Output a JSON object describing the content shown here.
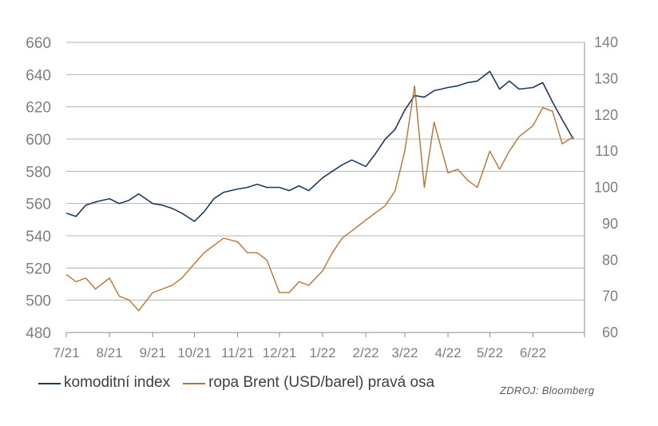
{
  "chart_data": {
    "type": "line",
    "title": "",
    "x_tick_labels": [
      "7/21",
      "8/21",
      "9/21",
      "10/21",
      "11/21",
      "12/21",
      "1/22",
      "2/22",
      "3/22",
      "4/22",
      "5/22",
      "6/22"
    ],
    "y_left": {
      "ylim": [
        480,
        660
      ],
      "ticks": [
        "480",
        "500",
        "520",
        "540",
        "560",
        "580",
        "600",
        "620",
        "640",
        "660"
      ]
    },
    "y_right": {
      "ylim": [
        60,
        140
      ],
      "ticks": [
        "60",
        "70",
        "80",
        "90",
        "100",
        "110",
        "120",
        "130",
        "140"
      ]
    },
    "grid": "horizontal",
    "legend_position": "bottom",
    "x": [
      "2021-07-01",
      "2021-07-08",
      "2021-07-15",
      "2021-07-22",
      "2021-08-01",
      "2021-08-08",
      "2021-08-15",
      "2021-08-22",
      "2021-09-01",
      "2021-09-08",
      "2021-09-15",
      "2021-09-22",
      "2021-10-01",
      "2021-10-08",
      "2021-10-15",
      "2021-10-22",
      "2021-11-01",
      "2021-11-08",
      "2021-11-15",
      "2021-11-22",
      "2021-12-01",
      "2021-12-08",
      "2021-12-15",
      "2021-12-22",
      "2022-01-01",
      "2022-01-08",
      "2022-01-15",
      "2022-01-22",
      "2022-02-01",
      "2022-02-08",
      "2022-02-15",
      "2022-02-22",
      "2022-03-01",
      "2022-03-08",
      "2022-03-15",
      "2022-03-22",
      "2022-04-01",
      "2022-04-08",
      "2022-04-15",
      "2022-04-22",
      "2022-05-01",
      "2022-05-08",
      "2022-05-15",
      "2022-05-22",
      "2022-06-01",
      "2022-06-08",
      "2022-06-15",
      "2022-06-22",
      "2022-06-30"
    ],
    "series": [
      {
        "name": "komoditní index",
        "axis": "left",
        "color": "#1f3a5f",
        "values": [
          554,
          552,
          559,
          561,
          563,
          560,
          562,
          566,
          560,
          559,
          557,
          554,
          549,
          555,
          563,
          567,
          569,
          570,
          572,
          570,
          570,
          568,
          571,
          568,
          576,
          580,
          584,
          587,
          583,
          591,
          600,
          606,
          618,
          627,
          626,
          630,
          632,
          633,
          635,
          636,
          642,
          631,
          636,
          631,
          632,
          635,
          623,
          612,
          600
        ]
      },
      {
        "name": "ropa Brent (USD/barel) pravá osa",
        "axis": "right",
        "color": "#b87333",
        "values": [
          76,
          74,
          75,
          72,
          75,
          70,
          69,
          66,
          71,
          72,
          73,
          75,
          79,
          82,
          84,
          86,
          85,
          82,
          82,
          80,
          71,
          71,
          74,
          73,
          77,
          82,
          86,
          88,
          91,
          93,
          95,
          99,
          110,
          128,
          100,
          118,
          104,
          105,
          102,
          100,
          110,
          105,
          110,
          114,
          117,
          122,
          121,
          112,
          114
        ]
      }
    ],
    "legend": [
      "komoditní index",
      "ropa Brent (USD/barel) pravá osa"
    ],
    "source": "ZDROJ: Bloomberg"
  }
}
